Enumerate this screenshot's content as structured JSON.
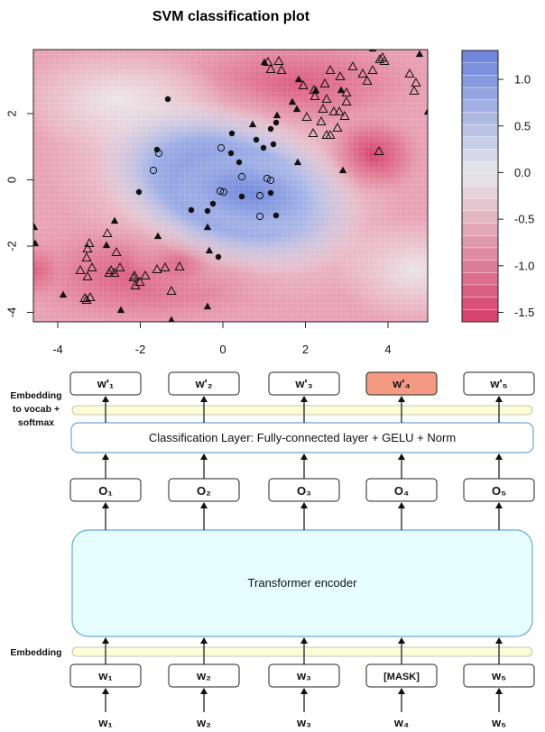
{
  "plot": {
    "title": "SVM classification plot",
    "x_ticks": [
      "-4",
      "-2",
      "0",
      "2",
      "4"
    ],
    "y_ticks": [
      "-4",
      "-2",
      "0",
      "2"
    ],
    "colorbar_ticks": [
      "1.0",
      "0.5",
      "0.0",
      "-0.5",
      "-1.0",
      "-1.5"
    ],
    "colors": {
      "positive": "#6f86dc",
      "neutral": "#e8e8ea",
      "negative": "#d94c70"
    }
  },
  "diagram": {
    "top_labels": [
      "w'₁",
      "w'₂",
      "w'₃",
      "w'₄",
      "w'₅"
    ],
    "highlight_index": 3,
    "highlight_color": "#f49a82",
    "left_label_top": [
      "Embedding",
      "to vocab +",
      "softmax"
    ],
    "classification_label": "Classification Layer: Fully-connected layer + GELU + Norm",
    "output_labels": [
      "O₁",
      "O₂",
      "O₃",
      "O₄",
      "O₅"
    ],
    "encoder_label": "Transformer encoder",
    "encoder_color": "#e6feff",
    "embedding_label": "Embedding",
    "embedding_color": "#fcfcd6",
    "input_box_labels": [
      "w₁",
      "w₂",
      "w₃",
      "[MASK]",
      "w₅"
    ],
    "input_labels": [
      "w₁",
      "w₂",
      "w₃",
      "w₄",
      "w₅"
    ]
  }
}
